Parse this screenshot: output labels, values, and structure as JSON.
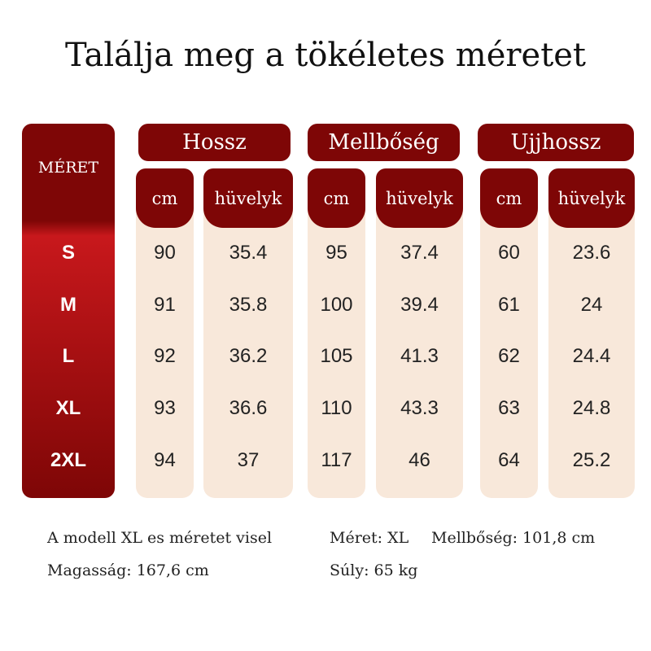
{
  "title": "Találja meg a tökéletes méretet",
  "table": {
    "size_header": "MÉRET",
    "groups": [
      {
        "name": "Hossz",
        "units": [
          "cm",
          "hüvelyk"
        ]
      },
      {
        "name": "Mellbőség",
        "units": [
          "cm",
          "hüvelyk"
        ]
      },
      {
        "name": "Ujjhossz",
        "units": [
          "cm",
          "hüvelyk"
        ]
      }
    ],
    "rows": [
      [
        "S",
        "90",
        "35.4",
        "95",
        "37.4",
        "60",
        "23.6"
      ],
      [
        "M",
        "91",
        "35.8",
        "100",
        "39.4",
        "61",
        "24"
      ],
      [
        "L",
        "92",
        "36.2",
        "105",
        "41.3",
        "62",
        "24.4"
      ],
      [
        "XL",
        "93",
        "36.6",
        "110",
        "43.3",
        "63",
        "24.8"
      ],
      [
        "2XL",
        "94",
        "37",
        "117",
        "46",
        "64",
        "25.2"
      ]
    ]
  },
  "notes": [
    [
      "A modell XL es méretet visel",
      "Méret: XL",
      "Mellbőség: 101,8 cm"
    ],
    [
      "Magasság: 167,6 cm",
      "Súly: 65 kg"
    ]
  ]
}
